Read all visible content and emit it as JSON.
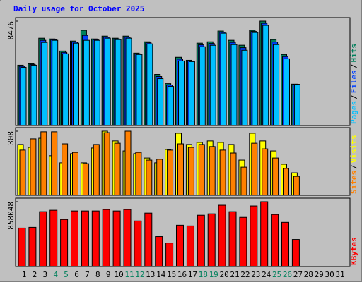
{
  "title": "Daily usage for October 2025",
  "legend_separator": "/",
  "weekend_color": "#00805c",
  "weekend_indices": [
    3,
    4,
    10,
    11,
    17,
    18,
    24,
    25
  ],
  "categories": [
    "1",
    "2",
    "3",
    "4",
    "5",
    "6",
    "7",
    "8",
    "9",
    "10",
    "11",
    "12",
    "13",
    "14",
    "15",
    "16",
    "17",
    "18",
    "19",
    "20",
    "21",
    "22",
    "23",
    "24",
    "25",
    "26",
    "27",
    "28",
    "29",
    "30",
    "31"
  ],
  "chart_data": [
    {
      "type": "bar",
      "ylim": [
        0,
        8476
      ],
      "yticks": [
        8476
      ],
      "series": [
        {
          "name": "Hits",
          "color": "#00805c",
          "values": [
            4900,
            5020,
            7090,
            7030,
            6050,
            6860,
            7730,
            7030,
            7260,
            7090,
            7260,
            5880,
            6800,
            4150,
            3400,
            5540,
            5300,
            6690,
            6800,
            7670,
            6920,
            6520,
            7730,
            8476,
            6980,
            5770,
            3360,
            null,
            null,
            null,
            null
          ]
        },
        {
          "name": "Files",
          "color": "#0040ff",
          "values": [
            4810,
            4960,
            6920,
            6970,
            5940,
            6780,
            7320,
            6970,
            7180,
            7030,
            7180,
            5820,
            6720,
            3980,
            3290,
            5390,
            5240,
            6550,
            6660,
            7580,
            6750,
            6320,
            7640,
            8300,
            6780,
            5600,
            3340,
            null,
            null,
            null,
            null
          ]
        },
        {
          "name": "Pages",
          "color": "#00c0ff",
          "values": [
            4728,
            4901,
            6746,
            6919,
            5824,
            6689,
            6919,
            6919,
            7092,
            6977,
            7092,
            5766,
            6631,
            3806,
            3171,
            5247,
            5189,
            6400,
            6516,
            7496,
            6573,
            6112,
            7553,
            8130,
            6573,
            5420,
            3344,
            null,
            null,
            null,
            null
          ]
        }
      ]
    },
    {
      "type": "bar",
      "ylim": [
        0,
        308
      ],
      "yticks": [
        308
      ],
      "series": [
        {
          "name": "Visits",
          "color": "#ffff00",
          "values": [
            244,
            230,
            274,
            190,
            156,
            200,
            156,
            227,
            308,
            261,
            213,
            200,
            179,
            156,
            220,
            298,
            244,
            254,
            261,
            254,
            244,
            169,
            298,
            261,
            213,
            149,
            108,
            null,
            null,
            null,
            null
          ]
        },
        {
          "name": "Sites",
          "color": "#ff8000",
          "values": [
            217,
            271,
            305,
            305,
            247,
            206,
            152,
            244,
            301,
            250,
            308,
            206,
            169,
            173,
            217,
            247,
            230,
            244,
            234,
            217,
            203,
            135,
            250,
            223,
            179,
            129,
            91,
            null,
            null,
            null,
            null
          ]
        }
      ]
    },
    {
      "type": "bar",
      "ylim": [
        0,
        858048
      ],
      "yticks": [
        858048
      ],
      "series": [
        {
          "name": "KBytes",
          "color": "#ff0000",
          "values": [
            509000,
            518600,
            726000,
            744900,
            622300,
            735500,
            735500,
            735500,
            754300,
            735500,
            754300,
            603500,
            707200,
            396000,
            311200,
            546900,
            537500,
            678900,
            697700,
            810900,
            726000,
            650600,
            801500,
            858048,
            688300,
            584600,
            358300,
            null,
            null,
            null,
            null
          ]
        }
      ]
    }
  ]
}
